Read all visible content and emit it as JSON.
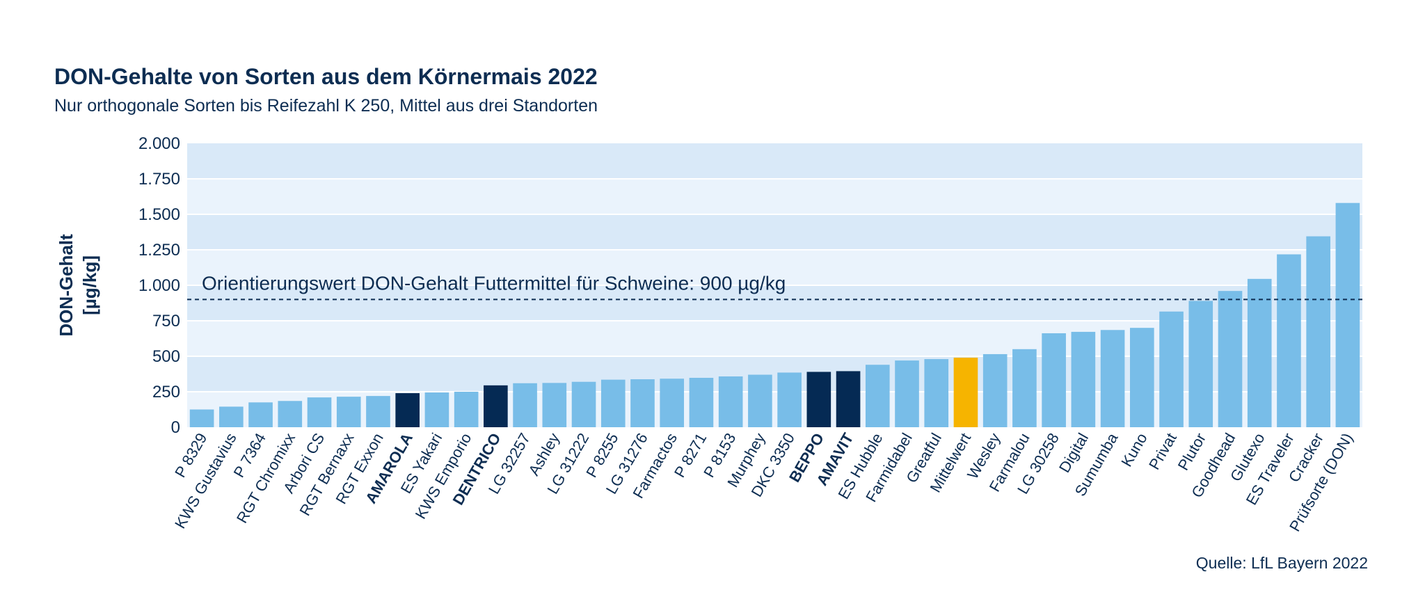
{
  "title": "DON-Gehalte von Sorten aus dem Körnermais 2022",
  "subtitle": "Nur orthogonale Sorten bis Reifezahl K 250, Mittel aus drei Standorten",
  "source": "Quelle: LfL Bayern 2022",
  "colors": {
    "bar_default": "#78bde8",
    "bar_highlight": "#052a54",
    "bar_mean": "#f6b400",
    "band_light": "#eaf3fc",
    "band_dark": "#d9e9f8",
    "text": "#0d2d52"
  },
  "chart_data": {
    "type": "bar",
    "title": "DON-Gehalte von Sorten aus dem Körnermais 2022",
    "subtitle": "Nur orthogonale Sorten bis Reifezahl K 250, Mittel aus drei Standorten",
    "ylabel": "DON-Gehalt [µg/kg]",
    "ylabel_lines": [
      "DON-Gehalt",
      "[µg/kg]"
    ],
    "xlabel": "",
    "ylim": [
      0,
      2000
    ],
    "yticks": [
      0,
      250,
      500,
      750,
      1000,
      1250,
      1500,
      1750,
      2000
    ],
    "ytick_labels": [
      "0",
      "250",
      "500",
      "750",
      "1.000",
      "1.250",
      "1.500",
      "1.750",
      "2.000"
    ],
    "categories": [
      "P 8329",
      "KWS Gustavius",
      "P 7364",
      "RGT Chromixx",
      "Arbori CS",
      "RGT Bernaxx",
      "RGT Exxon",
      "AMAROLA",
      "ES Yakari",
      "KWS Emporio",
      "DENTRICO",
      "LG 32257",
      "Ashley",
      "LG 31222",
      "P 8255",
      "LG 31276",
      "Farmactos",
      "P 8271",
      "P 8153",
      "Murphey",
      "DKC 3350",
      "BEPPO",
      "AMAVIT",
      "ES Hubble",
      "Farmidabel",
      "Greatful",
      "Mittelwert",
      "Wesley",
      "Farmalou",
      "LG 30258",
      "Digital",
      "Sumumba",
      "Kuno",
      "Privat",
      "Plutor",
      "Goodhead",
      "Glutexo",
      "ES Traveler",
      "Cracker",
      "Prüfsorte (DON)"
    ],
    "values": [
      125,
      145,
      175,
      185,
      210,
      215,
      220,
      240,
      245,
      250,
      295,
      310,
      312,
      320,
      335,
      338,
      342,
      348,
      358,
      370,
      385,
      390,
      395,
      440,
      470,
      480,
      490,
      515,
      550,
      662,
      672,
      685,
      700,
      815,
      890,
      960,
      1045,
      1218,
      1345,
      1580
    ],
    "highlighted": [
      "AMAROLA",
      "DENTRICO",
      "BEPPO",
      "AMAVIT"
    ],
    "mean_category": "Mittelwert",
    "reference_line": {
      "value": 900,
      "label": "Orientierungswert DON-Gehalt Futtermittel für Schweine: 900 µg/kg"
    },
    "grid": true,
    "legend": "none"
  }
}
